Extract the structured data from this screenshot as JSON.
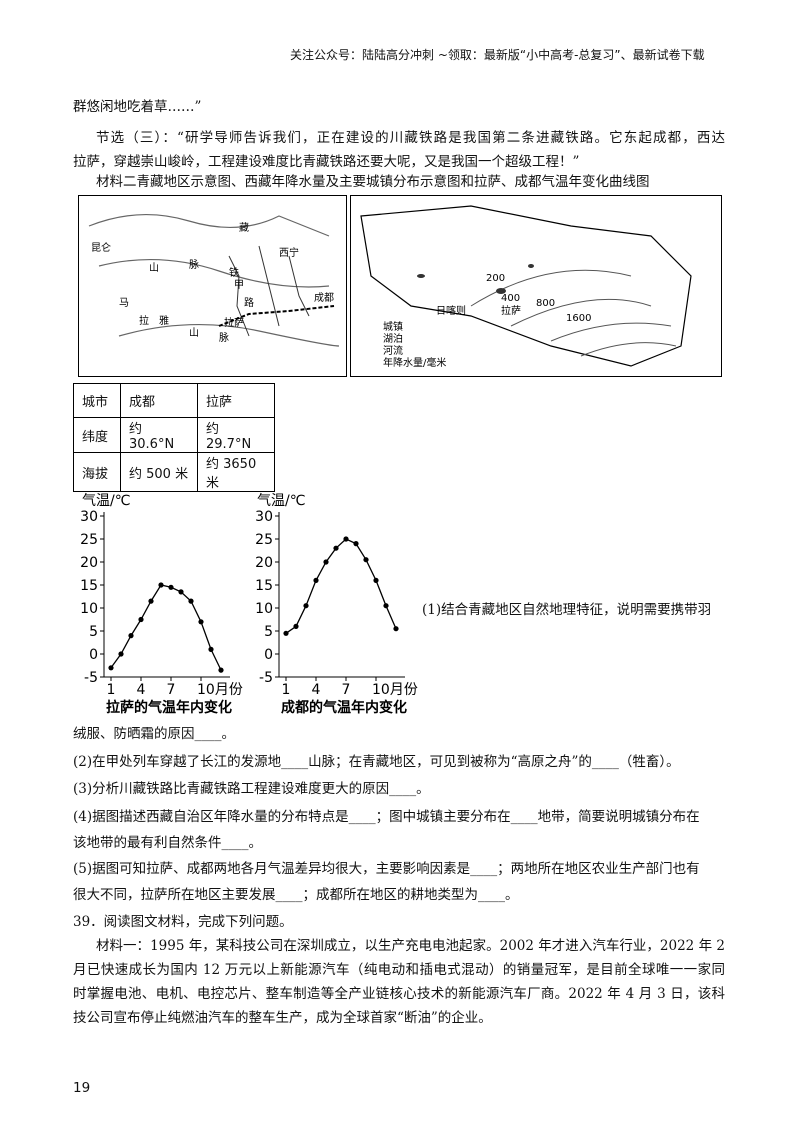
{
  "header": "关注公众号：陆陆高分冲刺 ~领取：最新版“小中高考-总复习”、最新试卷下载",
  "paragraphs": [
    "群悠闲地吃着草……”",
    "节选（三）：“研学导师告诉我们，正在建设的川藏铁路是我国第二条进藏铁路。它东起成都，西达",
    "拉萨，穿越崇山峻岭，工程建设难度比青藏铁路还要大呢，又是我国一个超级工程！”",
    "材料二青藏地区示意图、西藏年降水量及主要城镇分布示意图和拉萨、成都气温年变化曲线图"
  ],
  "map_left": {
    "labels": [
      "昆",
      "仑",
      "山",
      "脉",
      "藏",
      "西宁",
      "成都",
      "拉萨",
      "马",
      "拉",
      "雅",
      "山",
      "脉",
      "铁",
      "甲",
      "路"
    ]
  },
  "map_right": {
    "labels": [
      "200",
      "400",
      "800",
      "1600",
      "拉萨",
      "日喀则"
    ],
    "legend": [
      "城镇",
      "湖泊",
      "河流",
      "年降水量/毫米"
    ]
  },
  "table": {
    "rows": [
      [
        "城市",
        "成都",
        "拉萨"
      ],
      [
        "纬度",
        "约 30.6°N",
        "约 29.7°N"
      ],
      [
        "海拔",
        "约 500 米",
        "约 3650 米"
      ]
    ]
  },
  "chart_data": [
    {
      "type": "line",
      "title": "拉萨的气温年内变化",
      "y_label": "气温/℃",
      "x": [
        1,
        2,
        3,
        4,
        5,
        6,
        7,
        8,
        9,
        10,
        11,
        12
      ],
      "values": [
        -3,
        0,
        4,
        7.5,
        11.5,
        15,
        14.5,
        13.5,
        11.5,
        7,
        1,
        -3.5
      ],
      "color": "#000000",
      "xlim": [
        0.3,
        12.9
      ],
      "xticks": [
        1,
        4,
        7,
        {
          "value": 10,
          "label": "10月份"
        }
      ],
      "ylim": [
        -5,
        30
      ],
      "yticks": [
        -5,
        0,
        5,
        10,
        15,
        20,
        25,
        30
      ]
    },
    {
      "type": "line",
      "title": "成都的气温年内变化",
      "y_label": "气温/℃",
      "x": [
        1,
        2,
        3,
        4,
        5,
        6,
        7,
        8,
        9,
        10,
        11,
        12
      ],
      "values": [
        4.5,
        6,
        10.5,
        16,
        20,
        23,
        25,
        24,
        20.5,
        16,
        10.5,
        5.5
      ],
      "color": "#000000",
      "xlim": [
        0.3,
        12.9
      ],
      "xticks": [
        1,
        4,
        7,
        {
          "value": 10,
          "label": "10月份"
        }
      ],
      "ylim": [
        -5,
        30
      ],
      "yticks": [
        -5,
        0,
        5,
        10,
        15,
        20,
        25,
        30
      ]
    }
  ],
  "questions": [
    "(1)结合青藏地区自然地理特征，说明需要携带羽",
    "绒服、防晒霜的原因____。",
    "(2)在甲处列车穿越了长江的发源地____山脉；在青藏地区，可见到被称为“高原之舟”的____（牲畜）。",
    "(3)分析川藏铁路比青藏铁路工程建设难度更大的原因____。",
    "(4)据图描述西藏自治区年降水量的分布特点是____；图中城镇主要分布在____地带，简要说明城镇分布在",
    "该地带的最有利自然条件____。",
    "(5)据图可知拉萨、成都两地各月气温差异均很大，主要影响因素是____；两地所在地区农业生产部门也有",
    "很大不同，拉萨所在地区主要发展____；成都所在地区的耕地类型为____。"
  ],
  "q39": "39．阅读图文材料，完成下列问题。",
  "material1": [
    "材料一：1995 年，某科技公司在深圳成立，以生产充电电池起家。2002 年才进入汽车行业，2022 年 2",
    "月已快速成长为国内 12 万元以上新能源汽车（纯电动和插电式混动）的销量冠军，是目前全球唯一一家同",
    "时掌握电池、电机、电控芯片、整车制造等全产业链核心技术的新能源汽车厂商。2022 年 4 月 3 日，该科",
    "技公司宣布停止纯燃油汽车的整车生产，成为全球首家“断油”的企业。"
  ],
  "page_number": "19"
}
